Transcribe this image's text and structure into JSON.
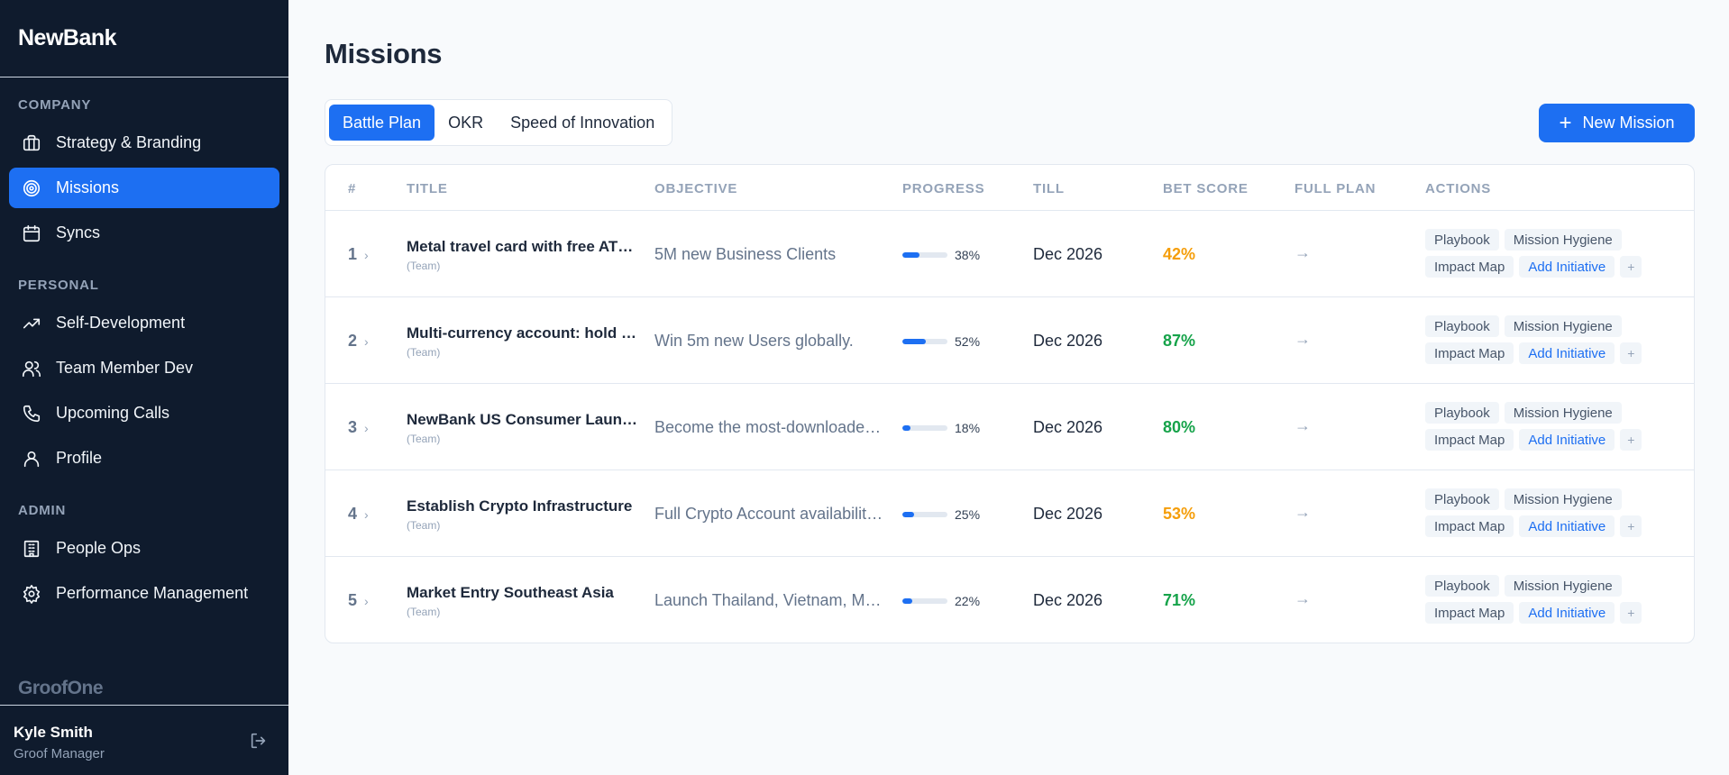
{
  "brand": "NewBank",
  "sidebar": {
    "sections": [
      {
        "label": "COMPANY"
      },
      {
        "label": "PERSONAL"
      },
      {
        "label": "ADMIN"
      }
    ],
    "items": [
      {
        "label": "Strategy & Branding",
        "icon": "briefcase-icon"
      },
      {
        "label": "Missions",
        "icon": "target-icon",
        "active": true
      },
      {
        "label": "Syncs",
        "icon": "calendar-icon"
      },
      {
        "label": "Self-Development",
        "icon": "trending-up-icon"
      },
      {
        "label": "Team Member Dev",
        "icon": "users-icon"
      },
      {
        "label": "Upcoming Calls",
        "icon": "phone-icon"
      },
      {
        "label": "Profile",
        "icon": "user-icon"
      },
      {
        "label": "People Ops",
        "icon": "building-icon"
      },
      {
        "label": "Performance Management",
        "icon": "gear-icon"
      }
    ],
    "footer_brand": "GroofOne",
    "user": {
      "name": "Kyle Smith",
      "role": "Groof Manager",
      "logout_icon": "logout-icon"
    }
  },
  "main": {
    "title": "Missions",
    "tabs": [
      {
        "label": "Battle Plan",
        "active": true
      },
      {
        "label": "OKR"
      },
      {
        "label": "Speed of Innovation"
      }
    ],
    "new_button": {
      "icon": "+",
      "label": "New Mission"
    }
  },
  "table": {
    "columns": [
      "#",
      "TITLE",
      "OBJECTIVE",
      "PROGRESS",
      "TILL",
      "BET SCORE",
      "FULL PLAN",
      "ACTIONS"
    ],
    "chevron": "›",
    "arrow": "→",
    "action_chips": [
      "Playbook",
      "Mission Hygiene",
      "Impact Map",
      "Add Initiative",
      "+"
    ],
    "rows": [
      {
        "num": "1",
        "title": "Metal travel card with free ATM withdrawals",
        "team": "(Team)",
        "objective": "5M new Business Clients",
        "progress": 38,
        "progress_label": "38%",
        "till": "Dec 2026",
        "bet": "42%",
        "bet_color": "#f59e0b"
      },
      {
        "num": "2",
        "title": "Multi-currency account: hold and exchange",
        "team": "(Team)",
        "objective": "Win 5m new Users globally.",
        "progress": 52,
        "progress_label": "52%",
        "till": "Dec 2026",
        "bet": "87%",
        "bet_color": "#16a34a"
      },
      {
        "num": "3",
        "title": "NewBank US Consumer Launch",
        "team": "(Team)",
        "objective": "Become the most-downloaded banking app",
        "progress": 18,
        "progress_label": "18%",
        "till": "Dec 2026",
        "bet": "80%",
        "bet_color": "#16a34a"
      },
      {
        "num": "4",
        "title": "Establish Crypto Infrastructure",
        "team": "(Team)",
        "objective": "Full Crypto Account availability in all markets",
        "progress": 25,
        "progress_label": "25%",
        "till": "Dec 2026",
        "bet": "53%",
        "bet_color": "#f59e0b"
      },
      {
        "num": "5",
        "title": "Market Entry Southeast Asia",
        "team": "(Team)",
        "objective": "Launch Thailand, Vietnam, Malaysia",
        "progress": 22,
        "progress_label": "22%",
        "till": "Dec 2026",
        "bet": "71%",
        "bet_color": "#16a34a"
      }
    ]
  }
}
